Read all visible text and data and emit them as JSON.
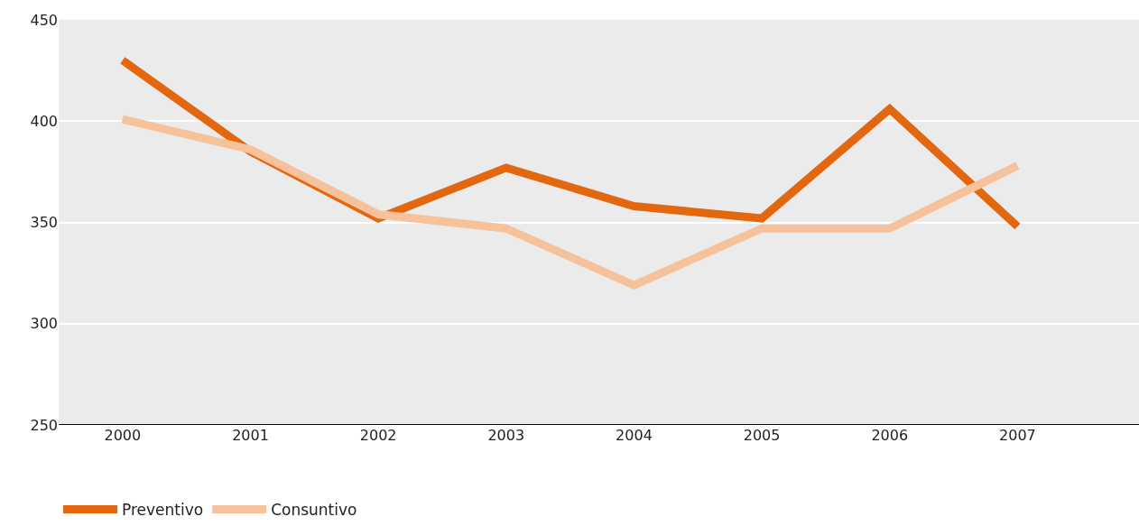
{
  "chart_data": {
    "type": "line",
    "categories": [
      "2000",
      "2001",
      "2002",
      "2003",
      "2004",
      "2005",
      "2006",
      "2007"
    ],
    "series": [
      {
        "name": "Preventivo",
        "color": "#e3670f",
        "values": [
          430,
          385,
          352,
          377,
          358,
          352,
          406,
          348
        ]
      },
      {
        "name": "Consuntivo",
        "color": "#f5c29c",
        "values": [
          401,
          386,
          354,
          347,
          319,
          347,
          347,
          378
        ]
      }
    ],
    "ylim": [
      250,
      450
    ],
    "yticks": [
      250,
      300,
      350,
      400,
      450
    ],
    "grid": "y",
    "legend": "bottom left",
    "marker": "none",
    "line_style": "solid"
  }
}
